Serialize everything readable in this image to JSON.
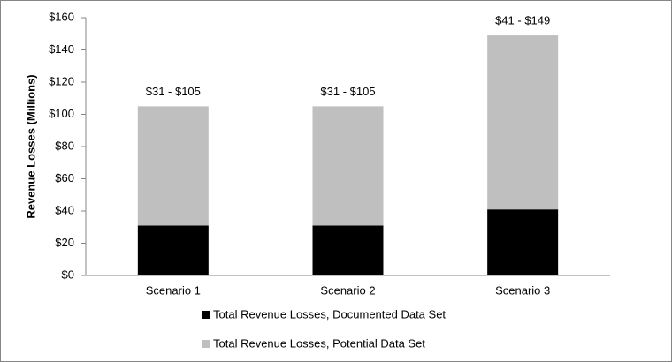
{
  "chart_data": {
    "type": "stacked-bar",
    "y_label": "Revenue Losses (Millions)",
    "categories": [
      "Scenario 1",
      "Scenario 2",
      "Scenario 3"
    ],
    "series": [
      {
        "name": "Total Revenue Losses, Documented Data Set",
        "color": "#000000",
        "values": [
          31,
          31,
          41
        ]
      },
      {
        "name": "Total Revenue Losses, Potential Data Set",
        "color": "#bfbfbf",
        "values": [
          74,
          74,
          108
        ]
      }
    ],
    "annotations": [
      "$31 - $105",
      "$31 - $105",
      "$41 - $149"
    ],
    "ylim": [
      0,
      160
    ],
    "yticks": [
      {
        "value": 0,
        "label": "$0"
      },
      {
        "value": 20,
        "label": "$20"
      },
      {
        "value": 40,
        "label": "$40"
      },
      {
        "value": 60,
        "label": "$60"
      },
      {
        "value": 80,
        "label": "$80"
      },
      {
        "value": 100,
        "label": "$100"
      },
      {
        "value": 120,
        "label": "$120"
      },
      {
        "value": 140,
        "label": "$140"
      },
      {
        "value": 160,
        "label": "$160"
      }
    ],
    "grid": false
  }
}
